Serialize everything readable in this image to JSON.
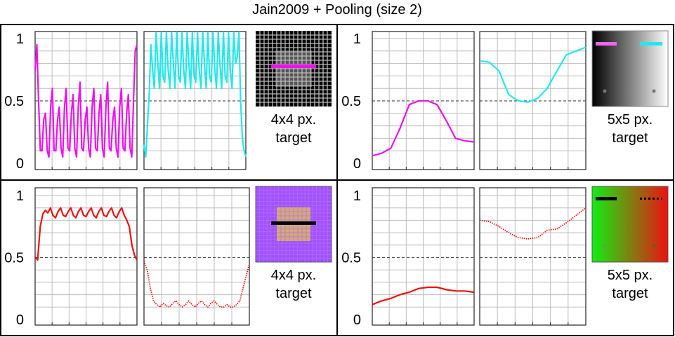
{
  "title": "Jain2009 + Pooling (size 2)",
  "yticks": [
    {
      "value": 0,
      "label": "0"
    },
    {
      "value": 0.5,
      "label": "0.5"
    },
    {
      "value": 1,
      "label": "1"
    }
  ],
  "colors": {
    "magenta": "#ee11ee",
    "cyan": "#22e8ee",
    "red": "#ee1111",
    "black": "#000000",
    "grid": "#bdbdbd",
    "reference": "#555555"
  },
  "chart_data": [
    {
      "type": "line",
      "grid": true,
      "ylim": [
        0,
        1
      ],
      "reference_line": 0.5,
      "target_label": [
        "4x4 px.",
        "target"
      ],
      "target_icon": "checkerboard-grid-gray-icon",
      "plots": [
        {
          "series": [
            {
              "color": "magenta",
              "style": "solid",
              "values": [
                0.75,
                0.95,
                0.5,
                0.1,
                0.1,
                0.35,
                0.4,
                0.1,
                0.05,
                0.45,
                0.6,
                0.1,
                0.1,
                0.35,
                0.45,
                0.12,
                0.05,
                0.45,
                0.6,
                0.12,
                0.1,
                0.4,
                0.55,
                0.12,
                0.05,
                0.45,
                0.65,
                0.12,
                0.1,
                0.35,
                0.45,
                0.12,
                0.05,
                0.45,
                0.6,
                0.12,
                0.1,
                0.4,
                0.55,
                0.12,
                0.05,
                0.45,
                0.65,
                0.12,
                0.1,
                0.35,
                0.45,
                0.12,
                0.05,
                0.45,
                0.6,
                0.12,
                0.1,
                0.4,
                0.55,
                0.12,
                0.05,
                0.5,
                0.9,
                0.95
              ]
            }
          ]
        },
        {
          "series": [
            {
              "color": "cyan",
              "style": "solid",
              "values": [
                0.15,
                0.05,
                0.3,
                0.55,
                0.95,
                0.75,
                0.6,
                1.05,
                0.8,
                0.6,
                1.05,
                0.7,
                0.65,
                1.05,
                0.75,
                0.6,
                1.05,
                0.8,
                0.6,
                1.05,
                0.7,
                0.65,
                1.05,
                0.75,
                0.6,
                1.05,
                0.8,
                0.6,
                1.05,
                0.7,
                0.65,
                1.05,
                0.75,
                0.6,
                1.05,
                0.8,
                0.6,
                1.05,
                0.7,
                0.65,
                1.05,
                0.75,
                0.6,
                1.05,
                0.8,
                0.6,
                1.05,
                0.7,
                0.65,
                1.05,
                0.75,
                0.6,
                1.05,
                0.8,
                0.85,
                1.05,
                0.5,
                0.2,
                0.1,
                0.05
              ]
            }
          ]
        }
      ]
    },
    {
      "type": "line",
      "grid": true,
      "ylim": [
        0,
        1
      ],
      "reference_line": 0.5,
      "target_label": [
        "5x5 px.",
        "target"
      ],
      "target_icon": "gray-gradient-target-icon",
      "plots": [
        {
          "series": [
            {
              "color": "magenta",
              "style": "solid",
              "values": [
                0.06,
                0.08,
                0.12,
                0.28,
                0.47,
                0.5,
                0.5,
                0.47,
                0.34,
                0.2,
                0.18,
                0.17
              ]
            }
          ]
        },
        {
          "series": [
            {
              "color": "cyan",
              "style": "solid",
              "values": [
                0.82,
                0.81,
                0.74,
                0.55,
                0.5,
                0.49,
                0.52,
                0.6,
                0.74,
                0.87,
                0.9,
                0.93
              ]
            }
          ]
        }
      ]
    },
    {
      "type": "line",
      "grid": true,
      "ylim": [
        0,
        1
      ],
      "reference_line": 0.5,
      "target_label": [
        "4x4 px.",
        "target"
      ],
      "target_icon": "purple-orange-grid-target-icon",
      "plots": [
        {
          "series": [
            {
              "color": "red",
              "style": "solid",
              "values": [
                0.5,
                0.48,
                0.75,
                0.85,
                0.88,
                0.86,
                0.9,
                0.84,
                0.82,
                0.87,
                0.9,
                0.84,
                0.83,
                0.87,
                0.9,
                0.84,
                0.82,
                0.87,
                0.9,
                0.84,
                0.83,
                0.87,
                0.9,
                0.84,
                0.82,
                0.87,
                0.9,
                0.84,
                0.83,
                0.87,
                0.9,
                0.84,
                0.82,
                0.87,
                0.9,
                0.84,
                0.8,
                0.75,
                0.6,
                0.52,
                0.48
              ]
            }
          ]
        },
        {
          "series": [
            {
              "color": "red",
              "style": "dotted",
              "values": [
                0.47,
                0.4,
                0.25,
                0.15,
                0.12,
                0.1,
                0.13,
                0.11,
                0.1,
                0.13,
                0.15,
                0.12,
                0.1,
                0.12,
                0.15,
                0.12,
                0.1,
                0.13,
                0.15,
                0.12,
                0.1,
                0.13,
                0.15,
                0.12,
                0.1,
                0.1,
                0.12,
                0.1,
                0.1,
                0.12,
                0.15,
                0.25,
                0.35,
                0.45
              ]
            }
          ]
        }
      ]
    },
    {
      "type": "line",
      "grid": true,
      "ylim": [
        0,
        1
      ],
      "reference_line": 0.5,
      "target_label": [
        "5x5 px.",
        "target"
      ],
      "target_icon": "green-red-gradient-target-icon",
      "plots": [
        {
          "series": [
            {
              "color": "red",
              "style": "solid",
              "values": [
                0.12,
                0.15,
                0.17,
                0.2,
                0.22,
                0.25,
                0.26,
                0.26,
                0.24,
                0.23,
                0.23,
                0.22
              ]
            }
          ]
        },
        {
          "series": [
            {
              "color": "red",
              "style": "dotted",
              "values": [
                0.8,
                0.79,
                0.75,
                0.7,
                0.66,
                0.65,
                0.66,
                0.72,
                0.73,
                0.78,
                0.84,
                0.9
              ]
            }
          ]
        }
      ]
    }
  ]
}
